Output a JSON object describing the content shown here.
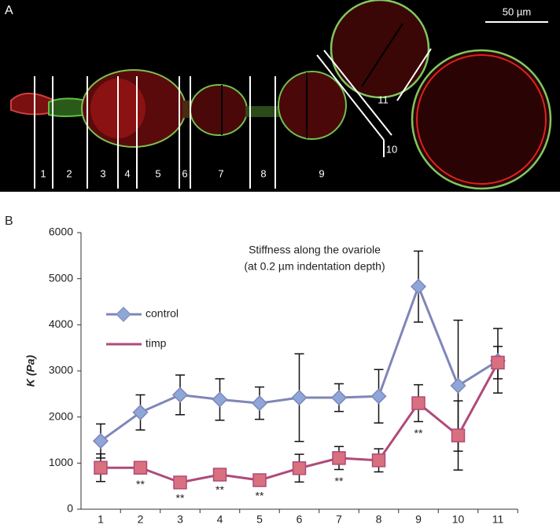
{
  "panel_a": {
    "label": "A",
    "scale_bar": "50 µm",
    "segment_labels": [
      "1",
      "2",
      "3",
      "4",
      "5",
      "6",
      "7",
      "8",
      "9",
      "10",
      "11"
    ]
  },
  "chart_data": {
    "type": "line",
    "panel_label": "B",
    "title": [
      "Stiffness along the ovariole",
      "(at 0.2 µm indentation depth)"
    ],
    "y_label": "K (Pa)",
    "categories": [
      "1",
      "2",
      "3",
      "4",
      "5",
      "6",
      "7",
      "8",
      "9",
      "10",
      "11"
    ],
    "series": [
      {
        "name": "control",
        "color": "#7f86b8",
        "marker_color": "#8ea6d8",
        "marker": "diamond",
        "values": [
          1480,
          2100,
          2480,
          2380,
          2300,
          2420,
          2420,
          2450,
          4830,
          2680,
          3220
        ],
        "errors": [
          370,
          380,
          430,
          450,
          350,
          950,
          300,
          580,
          770,
          1420,
          700
        ]
      },
      {
        "name": "timp",
        "color": "#b04a78",
        "marker_color": "#d9707f",
        "marker": "square",
        "values": [
          900,
          900,
          580,
          750,
          630,
          890,
          1110,
          1060,
          2300,
          1600,
          3180
        ],
        "errors": [
          300,
          100,
          80,
          70,
          80,
          300,
          250,
          250,
          400,
          750,
          350
        ]
      }
    ],
    "annotations": [
      {
        "text": "**",
        "x": "2"
      },
      {
        "text": "**",
        "x": "3"
      },
      {
        "text": "**",
        "x": "4"
      },
      {
        "text": "**",
        "x": "5"
      },
      {
        "text": "**",
        "x": "7"
      },
      {
        "text": "**",
        "x": "9"
      }
    ],
    "ylim": [
      0,
      6000
    ],
    "yticks": [
      0,
      1000,
      2000,
      3000,
      4000,
      5000,
      6000
    ],
    "grid": false,
    "legend": "left"
  }
}
